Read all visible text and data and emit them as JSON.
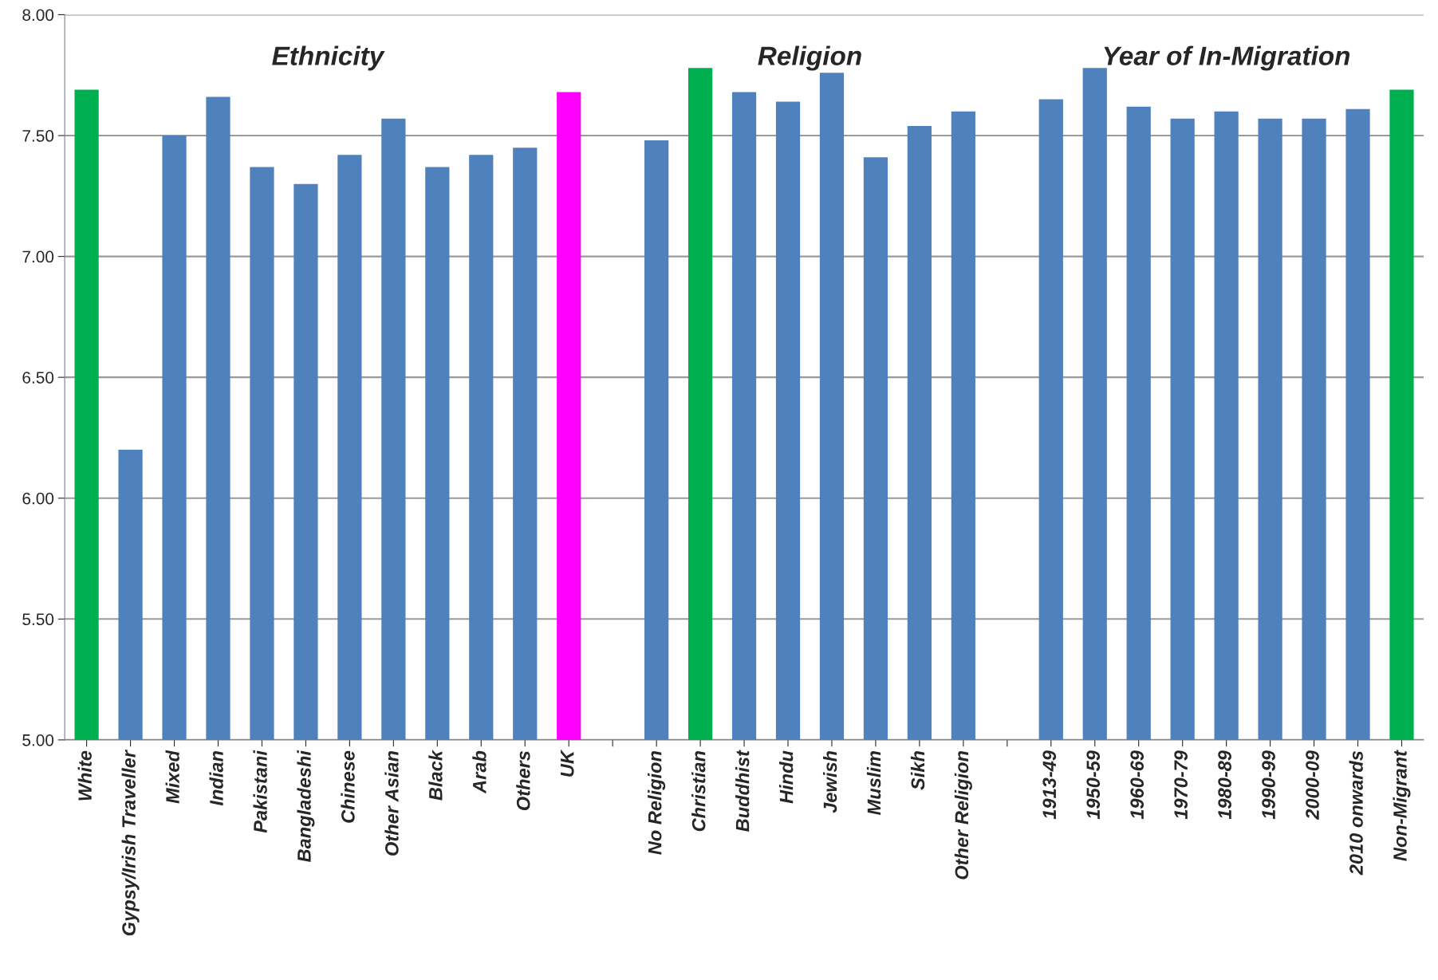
{
  "chart_data": {
    "type": "bar",
    "annotations": [
      "Ethnicity",
      "Religion",
      "Year of In-Migration"
    ],
    "categories": [
      "White",
      "Gypsy/Irish Traveller",
      "Mixed",
      "Indian",
      "Pakistani",
      "Bangladeshi",
      "Chinese",
      "Other Asian",
      "Black",
      "Arab",
      "Others",
      "UK",
      null,
      "No Religion",
      "Christian",
      "Buddhist",
      "Hindu",
      "Jewish",
      "Muslim",
      "Sikh",
      "Other Religion",
      null,
      "1913-49",
      "1950-59",
      "1960-69",
      "1970-79",
      "1980-89",
      "1990-99",
      "2000-09",
      "2010 onwards",
      "Non-Migrant"
    ],
    "values": [
      7.69,
      6.2,
      7.5,
      7.66,
      7.37,
      7.3,
      7.42,
      7.57,
      7.37,
      7.42,
      7.45,
      7.68,
      null,
      7.48,
      7.78,
      7.68,
      7.64,
      7.76,
      7.41,
      7.54,
      7.6,
      null,
      7.65,
      7.78,
      7.62,
      7.57,
      7.6,
      7.57,
      7.57,
      7.61,
      7.69
    ],
    "colors": [
      "#00b050",
      "#4f81bd",
      "#4f81bd",
      "#4f81bd",
      "#4f81bd",
      "#4f81bd",
      "#4f81bd",
      "#4f81bd",
      "#4f81bd",
      "#4f81bd",
      "#4f81bd",
      "#ff00ff",
      "#4f81bd",
      "#4f81bd",
      "#00b050",
      "#4f81bd",
      "#4f81bd",
      "#4f81bd",
      "#4f81bd",
      "#4f81bd",
      "#4f81bd",
      "#4f81bd",
      "#4f81bd",
      "#4f81bd",
      "#4f81bd",
      "#4f81bd",
      "#4f81bd",
      "#4f81bd",
      "#4f81bd",
      "#4f81bd",
      "#00b050"
    ],
    "ylim": [
      5,
      8
    ],
    "yticks": [
      {
        "value": 5,
        "label": "5.00"
      },
      {
        "value": 5.5,
        "label": "5.50"
      },
      {
        "value": 6,
        "label": "6.00"
      },
      {
        "value": 6.5,
        "label": "6.50"
      },
      {
        "value": 7,
        "label": "7.00"
      },
      {
        "value": 7.5,
        "label": "7.50"
      },
      {
        "value": 8,
        "label": "8.00"
      }
    ],
    "grid": "y",
    "legend": false
  }
}
